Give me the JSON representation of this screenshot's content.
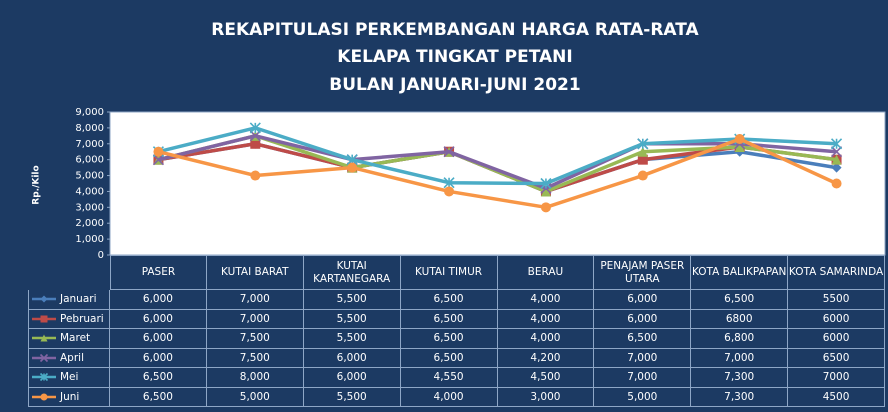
{
  "chart_data": {
    "type": "line",
    "title": [
      "REKAPITULASI PERKEMBANGAN HARGA RATA-RATA",
      "KELAPA TINGKAT PETANI",
      "BULAN JANUARI-JUNI 2021"
    ],
    "y_label": "Rp./Kilo",
    "categories": [
      "PASER",
      "KUTAI BARAT",
      "KUTAI KARTANEGARA",
      "KUTAI TIMUR",
      "BERAU",
      "PENAJAM PASER UTARA",
      "KOTA BALIKPAPAN",
      "KOTA SAMARINDA"
    ],
    "ylim": [
      0,
      9000
    ],
    "yticks": [
      0,
      {
        "value": 1000,
        "label": "1,000"
      },
      {
        "value": 2000,
        "label": "2,000"
      },
      {
        "value": 3000,
        "label": "3,000"
      },
      {
        "value": 4000,
        "label": "4,000"
      },
      {
        "value": 5000,
        "label": "5,000"
      },
      {
        "value": 6000,
        "label": "6,000"
      },
      {
        "value": 7000,
        "label": "7,000"
      },
      {
        "value": 8000,
        "label": "8,000"
      },
      {
        "value": 9000,
        "label": "9,000"
      }
    ],
    "grid": false,
    "series": [
      {
        "name": "Januari",
        "color": "#4a7ebb",
        "marker": "diamond",
        "values": [
          6000,
          7000,
          5500,
          6500,
          4000,
          6000,
          6500,
          5500
        ],
        "value_labels": [
          "6,000",
          "7,000",
          "5,500",
          "6,500",
          "4,000",
          "6,000",
          "6,500",
          "5500"
        ]
      },
      {
        "name": "Pebruari",
        "color": "#be4b48",
        "marker": "square",
        "values": [
          6000,
          7000,
          5500,
          6500,
          4000,
          6000,
          6800,
          6000
        ],
        "value_labels": [
          "6,000",
          "7,000",
          "5,500",
          "6,500",
          "4,000",
          "6,000",
          "6800",
          "6000"
        ]
      },
      {
        "name": "Maret",
        "color": "#98b954",
        "marker": "triangle",
        "values": [
          6000,
          7500,
          5500,
          6500,
          4000,
          6500,
          6800,
          6000
        ],
        "value_labels": [
          "6,000",
          "7,500",
          "5,500",
          "6,500",
          "4,000",
          "6,500",
          "6,800",
          "6000"
        ]
      },
      {
        "name": "April",
        "color": "#8064a2",
        "marker": "x",
        "values": [
          6000,
          7500,
          6000,
          6500,
          4200,
          7000,
          7000,
          6500
        ],
        "value_labels": [
          "6,000",
          "7,500",
          "6,000",
          "6,500",
          "4,200",
          "7,000",
          "7,000",
          "6500"
        ]
      },
      {
        "name": "Mei",
        "color": "#4bacc6",
        "marker": "star",
        "values": [
          6500,
          8000,
          6000,
          4550,
          4500,
          7000,
          7300,
          7000
        ],
        "value_labels": [
          "6,500",
          "8,000",
          "6,000",
          "4,550",
          "4,500",
          "7,000",
          "7,300",
          "7000"
        ]
      },
      {
        "name": "Juni",
        "color": "#f79646",
        "marker": "circle",
        "values": [
          6500,
          5000,
          5500,
          4000,
          3000,
          5000,
          7300,
          4500
        ],
        "value_labels": [
          "6,500",
          "5,000",
          "5,500",
          "4,000",
          "3,000",
          "5,000",
          "7,300",
          "4500"
        ]
      }
    ]
  }
}
